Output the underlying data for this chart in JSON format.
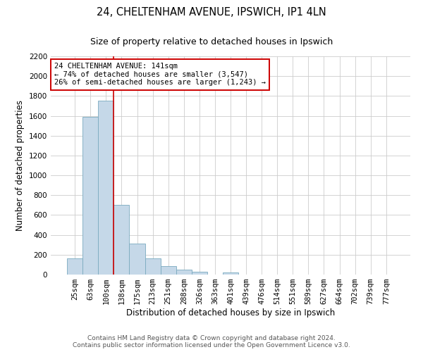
{
  "title": "24, CHELTENHAM AVENUE, IPSWICH, IP1 4LN",
  "subtitle": "Size of property relative to detached houses in Ipswich",
  "xlabel": "Distribution of detached houses by size in Ipswich",
  "ylabel": "Number of detached properties",
  "bin_labels": [
    "25sqm",
    "63sqm",
    "100sqm",
    "138sqm",
    "175sqm",
    "213sqm",
    "251sqm",
    "288sqm",
    "326sqm",
    "363sqm",
    "401sqm",
    "439sqm",
    "476sqm",
    "514sqm",
    "551sqm",
    "589sqm",
    "627sqm",
    "664sqm",
    "702sqm",
    "739sqm",
    "777sqm"
  ],
  "bar_values": [
    160,
    1590,
    1750,
    700,
    315,
    160,
    85,
    50,
    25,
    0,
    20,
    0,
    0,
    0,
    0,
    0,
    0,
    0,
    0,
    0,
    0
  ],
  "bar_color": "#c5d8e8",
  "bar_edge_color": "#7aaabf",
  "vline_color": "#cc0000",
  "annotation_text": "24 CHELTENHAM AVENUE: 141sqm\n← 74% of detached houses are smaller (3,547)\n26% of semi-detached houses are larger (1,243) →",
  "annotation_box_color": "#ffffff",
  "annotation_box_edge_color": "#cc0000",
  "ylim": [
    0,
    2200
  ],
  "yticks": [
    0,
    200,
    400,
    600,
    800,
    1000,
    1200,
    1400,
    1600,
    1800,
    2000,
    2200
  ],
  "grid_color": "#cccccc",
  "background_color": "#ffffff",
  "footer_line1": "Contains HM Land Registry data © Crown copyright and database right 2024.",
  "footer_line2": "Contains public sector information licensed under the Open Government Licence v3.0.",
  "title_fontsize": 10.5,
  "subtitle_fontsize": 9,
  "axis_label_fontsize": 8.5,
  "tick_fontsize": 7.5,
  "annotation_fontsize": 7.5,
  "footer_fontsize": 6.5
}
